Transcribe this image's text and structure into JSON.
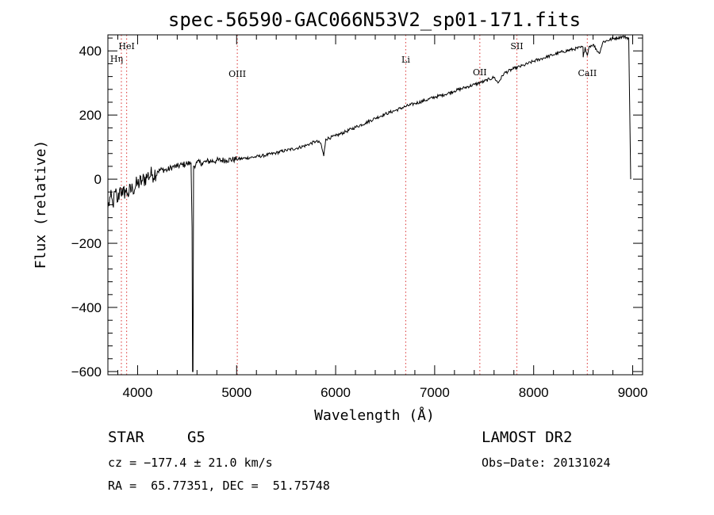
{
  "chart_data": {
    "type": "line",
    "title": "spec-56590-GAC066N53V2_sp01-171.fits",
    "xlabel": "Wavelength (Å)",
    "ylabel": "Flux (relative)",
    "xlim": [
      3700,
      9100
    ],
    "ylim": [
      -610,
      450
    ],
    "x_ticks": [
      4000,
      5000,
      6000,
      7000,
      8000,
      9000
    ],
    "y_ticks": [
      -600,
      -400,
      -200,
      0,
      200,
      400
    ],
    "grid": false,
    "line_color": "#000000",
    "marker_color": "#e05050",
    "series": [
      {
        "points": [
          [
            3700,
            -90
          ],
          [
            3725,
            -55
          ],
          [
            3750,
            -80
          ],
          [
            3775,
            -40
          ],
          [
            3800,
            -70
          ],
          [
            3825,
            -25
          ],
          [
            3850,
            -50
          ],
          [
            3875,
            -35
          ],
          [
            3900,
            -45
          ],
          [
            3950,
            -30
          ],
          [
            4000,
            -15
          ],
          [
            4050,
            -5
          ],
          [
            4100,
            10
          ],
          [
            4150,
            15
          ],
          [
            4200,
            25
          ],
          [
            4250,
            30
          ],
          [
            4300,
            28
          ],
          [
            4350,
            38
          ],
          [
            4400,
            40
          ],
          [
            4450,
            45
          ],
          [
            4500,
            48
          ],
          [
            4540,
            50
          ],
          [
            4550,
            -150
          ],
          [
            4555,
            -600
          ],
          [
            4560,
            -600
          ],
          [
            4565,
            40
          ],
          [
            4600,
            52
          ],
          [
            4650,
            50
          ],
          [
            4700,
            55
          ],
          [
            4800,
            58
          ],
          [
            4900,
            60
          ],
          [
            5000,
            62
          ],
          [
            5100,
            66
          ],
          [
            5200,
            70
          ],
          [
            5300,
            75
          ],
          [
            5400,
            82
          ],
          [
            5500,
            90
          ],
          [
            5600,
            96
          ],
          [
            5700,
            105
          ],
          [
            5800,
            118
          ],
          [
            5850,
            112
          ],
          [
            5880,
            72
          ],
          [
            5900,
            125
          ],
          [
            6000,
            135
          ],
          [
            6100,
            148
          ],
          [
            6200,
            162
          ],
          [
            6300,
            175
          ],
          [
            6400,
            190
          ],
          [
            6500,
            203
          ],
          [
            6600,
            214
          ],
          [
            6700,
            226
          ],
          [
            6800,
            236
          ],
          [
            6900,
            245
          ],
          [
            7000,
            256
          ],
          [
            7100,
            264
          ],
          [
            7200,
            275
          ],
          [
            7300,
            285
          ],
          [
            7400,
            295
          ],
          [
            7500,
            305
          ],
          [
            7600,
            318
          ],
          [
            7640,
            300
          ],
          [
            7700,
            330
          ],
          [
            7800,
            345
          ],
          [
            7900,
            355
          ],
          [
            8000,
            368
          ],
          [
            8100,
            378
          ],
          [
            8200,
            388
          ],
          [
            8300,
            398
          ],
          [
            8400,
            405
          ],
          [
            8498,
            412
          ],
          [
            8500,
            380
          ],
          [
            8520,
            412
          ],
          [
            8542,
            385
          ],
          [
            8560,
            414
          ],
          [
            8600,
            420
          ],
          [
            8662,
            392
          ],
          [
            8700,
            428
          ],
          [
            8800,
            438
          ],
          [
            8900,
            445
          ],
          [
            8960,
            440
          ],
          [
            8970,
            215
          ],
          [
            8980,
            0
          ]
        ]
      }
    ],
    "lines": [
      {
        "label": "Hη",
        "x": 3836
      },
      {
        "label": "HeI",
        "x": 3889
      },
      {
        "label": "OIII",
        "x": 5007
      },
      {
        "label": "Li",
        "x": 6708
      },
      {
        "label": "OII",
        "x": 7456
      },
      {
        "label": "SII",
        "x": 7830
      },
      {
        "label": "CaII",
        "x": 8542
      }
    ]
  },
  "info": {
    "class_label": "STAR",
    "subclass": "G5",
    "survey": "LAMOST DR2",
    "cz_line": "cz = −177.4 ± 21.0 km/s",
    "obs_date_line": "Obs−Date: 20131024",
    "radec_line": "RA =  65.77351, DEC =  51.75748"
  }
}
